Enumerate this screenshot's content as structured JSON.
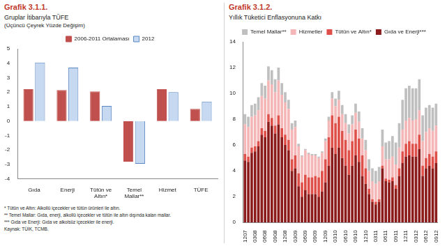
{
  "chart_data": [
    {
      "type": "bar",
      "title": "Grafik 3.1.1.",
      "subtitle": [
        "Gruplar İtibarıyla TÜFE",
        "(Üçüncü Çeyrek Yüzde Değişim)"
      ],
      "categories": [
        "Gıda",
        "Enerji",
        "Tütün ve Altın*",
        "Temel Mallar**",
        "Hizmet",
        "TÜFE"
      ],
      "series": [
        {
          "name": "2006-2011 Ortalaması",
          "color": "#c0504d",
          "values": [
            2.2,
            2.15,
            2.05,
            -2.8,
            2.2,
            0.85
          ]
        },
        {
          "name": "2012",
          "color": "#c6d9f1",
          "values": [
            4.05,
            3.7,
            1.05,
            -2.95,
            2.0,
            1.35
          ]
        }
      ],
      "ylim": [
        -4,
        5
      ],
      "yticks": [
        -4,
        -3,
        -2,
        -1,
        0,
        1,
        2,
        3,
        4,
        5
      ],
      "grid": false,
      "legend": "top"
    },
    {
      "type": "bar",
      "title": "Grafik 3.1.2.",
      "subtitle": [
        "Yıllık Tüketici Enflasyonuna Katkı"
      ],
      "stacked": true,
      "categories": [
        "1207",
        null,
        null,
        "0308",
        null,
        null,
        "0608",
        null,
        null,
        "0908",
        null,
        null,
        "1208",
        null,
        null,
        "0309",
        null,
        null,
        "0609",
        null,
        null,
        "0909",
        null,
        null,
        "1209",
        null,
        null,
        "0310",
        null,
        null,
        "0610",
        null,
        null,
        "0910",
        null,
        null,
        "1210",
        null,
        null,
        "0311",
        null,
        null,
        "0611",
        null,
        null,
        "0911",
        null,
        null,
        "1211",
        null,
        null,
        "0312",
        null,
        null,
        "0612",
        null,
        null,
        "0912"
      ],
      "series": [
        {
          "name": "Gıda ve Enerji***",
          "color": "#8c1c1c",
          "values": [
            4.8,
            4.7,
            5.4,
            5.5,
            5.9,
            6.8,
            6.6,
            7.8,
            7.5,
            6.9,
            7.6,
            6.6,
            6.0,
            5.6,
            4.0,
            4.2,
            2.8,
            2.0,
            2.5,
            2.2,
            2.2,
            2.2,
            2.0,
            2.4,
            3.1,
            4.4,
            5.8,
            5.3,
            5.8,
            5.0,
            4.4,
            3.7,
            4.4,
            5.2,
            4.7,
            3.6,
            3.0,
            2.2,
            1.6,
            1.4,
            1.6,
            4.2,
            3.2,
            3.1,
            3.2,
            2.6,
            3.6,
            4.6,
            5.1,
            5.2,
            5.1,
            5.1,
            5.7,
            3.6,
            4.2,
            4.4,
            4.2,
            4.6
          ]
        },
        {
          "name": "Tütün ve Altın*",
          "color": "#e0504a",
          "values": [
            0.5,
            0.4,
            0.4,
            0.4,
            0.4,
            0.5,
            0.5,
            0.6,
            0.6,
            0.6,
            0.7,
            0.7,
            0.8,
            0.8,
            0.9,
            1.0,
            1.0,
            1.1,
            1.2,
            1.3,
            1.3,
            1.4,
            1.5,
            1.6,
            1.8,
            2.2,
            2.5,
            2.4,
            2.4,
            2.1,
            2.0,
            1.9,
            1.9,
            2.0,
            1.8,
            1.6,
            1.2,
            0.4,
            0.2,
            0.2,
            0.2,
            0.2,
            0.2,
            0.2,
            0.3,
            0.3,
            0.6,
            0.9,
            1.0,
            1.1,
            1.0,
            1.0,
            1.1,
            0.8,
            0.8,
            0.9,
            0.9,
            0.9
          ]
        },
        {
          "name": "Hizmetler",
          "color": "#f4b6b6",
          "values": [
            2.3,
            2.3,
            2.4,
            2.4,
            2.4,
            2.5,
            2.5,
            2.6,
            2.6,
            2.6,
            2.7,
            2.6,
            2.5,
            2.4,
            2.3,
            2.2,
            2.1,
            2.0,
            1.9,
            1.8,
            1.7,
            1.6,
            1.5,
            1.4,
            1.4,
            1.3,
            1.3,
            1.3,
            1.3,
            1.3,
            1.3,
            1.3,
            1.3,
            1.3,
            1.3,
            1.3,
            1.4,
            1.4,
            1.4,
            1.4,
            1.4,
            1.5,
            1.5,
            1.6,
            1.6,
            1.6,
            1.6,
            1.7,
            1.8,
            1.8,
            1.8,
            1.9,
            1.9,
            1.9,
            2.0,
            2.0,
            2.0,
            2.0
          ]
        },
        {
          "name": "Temel Mallar**",
          "color": "#bfbfbf",
          "values": [
            0.8,
            0.8,
            0.9,
            0.9,
            1.0,
            1.0,
            1.0,
            1.1,
            1.1,
            1.0,
            1.0,
            0.9,
            0.8,
            0.7,
            0.5,
            0.5,
            0.2,
            0.1,
            0.1,
            0.1,
            0.1,
            0.1,
            0.1,
            0.1,
            0.2,
            0.3,
            0.5,
            0.6,
            0.7,
            0.7,
            0.7,
            0.7,
            0.7,
            0.7,
            0.8,
            0.8,
            0.8,
            0.9,
            1.0,
            1.0,
            1.1,
            1.3,
            1.3,
            1.4,
            1.6,
            1.7,
            1.9,
            2.3,
            2.5,
            2.5,
            2.5,
            2.4,
            2.4,
            2.0,
            1.9,
            1.8,
            1.8,
            1.7
          ]
        }
      ],
      "ylim": [
        0,
        14
      ],
      "yticks": [
        0,
        2,
        4,
        6,
        8,
        10,
        12,
        14
      ],
      "grid": false,
      "legend": "top"
    }
  ],
  "notes": [
    "* Tütün ve Altın: Alkollü içecekler ve tütün ürünleri ile altın.",
    "** Temel Mallar: Gıda, enerji, alkollü içecekler ve tütün ile altın dışında kalan mallar.",
    "*** Gıda ve Enerji: Gıda ve alkolsüz içecekler ile enerji.",
    "Kaynak: TÜİK, TCMB."
  ]
}
